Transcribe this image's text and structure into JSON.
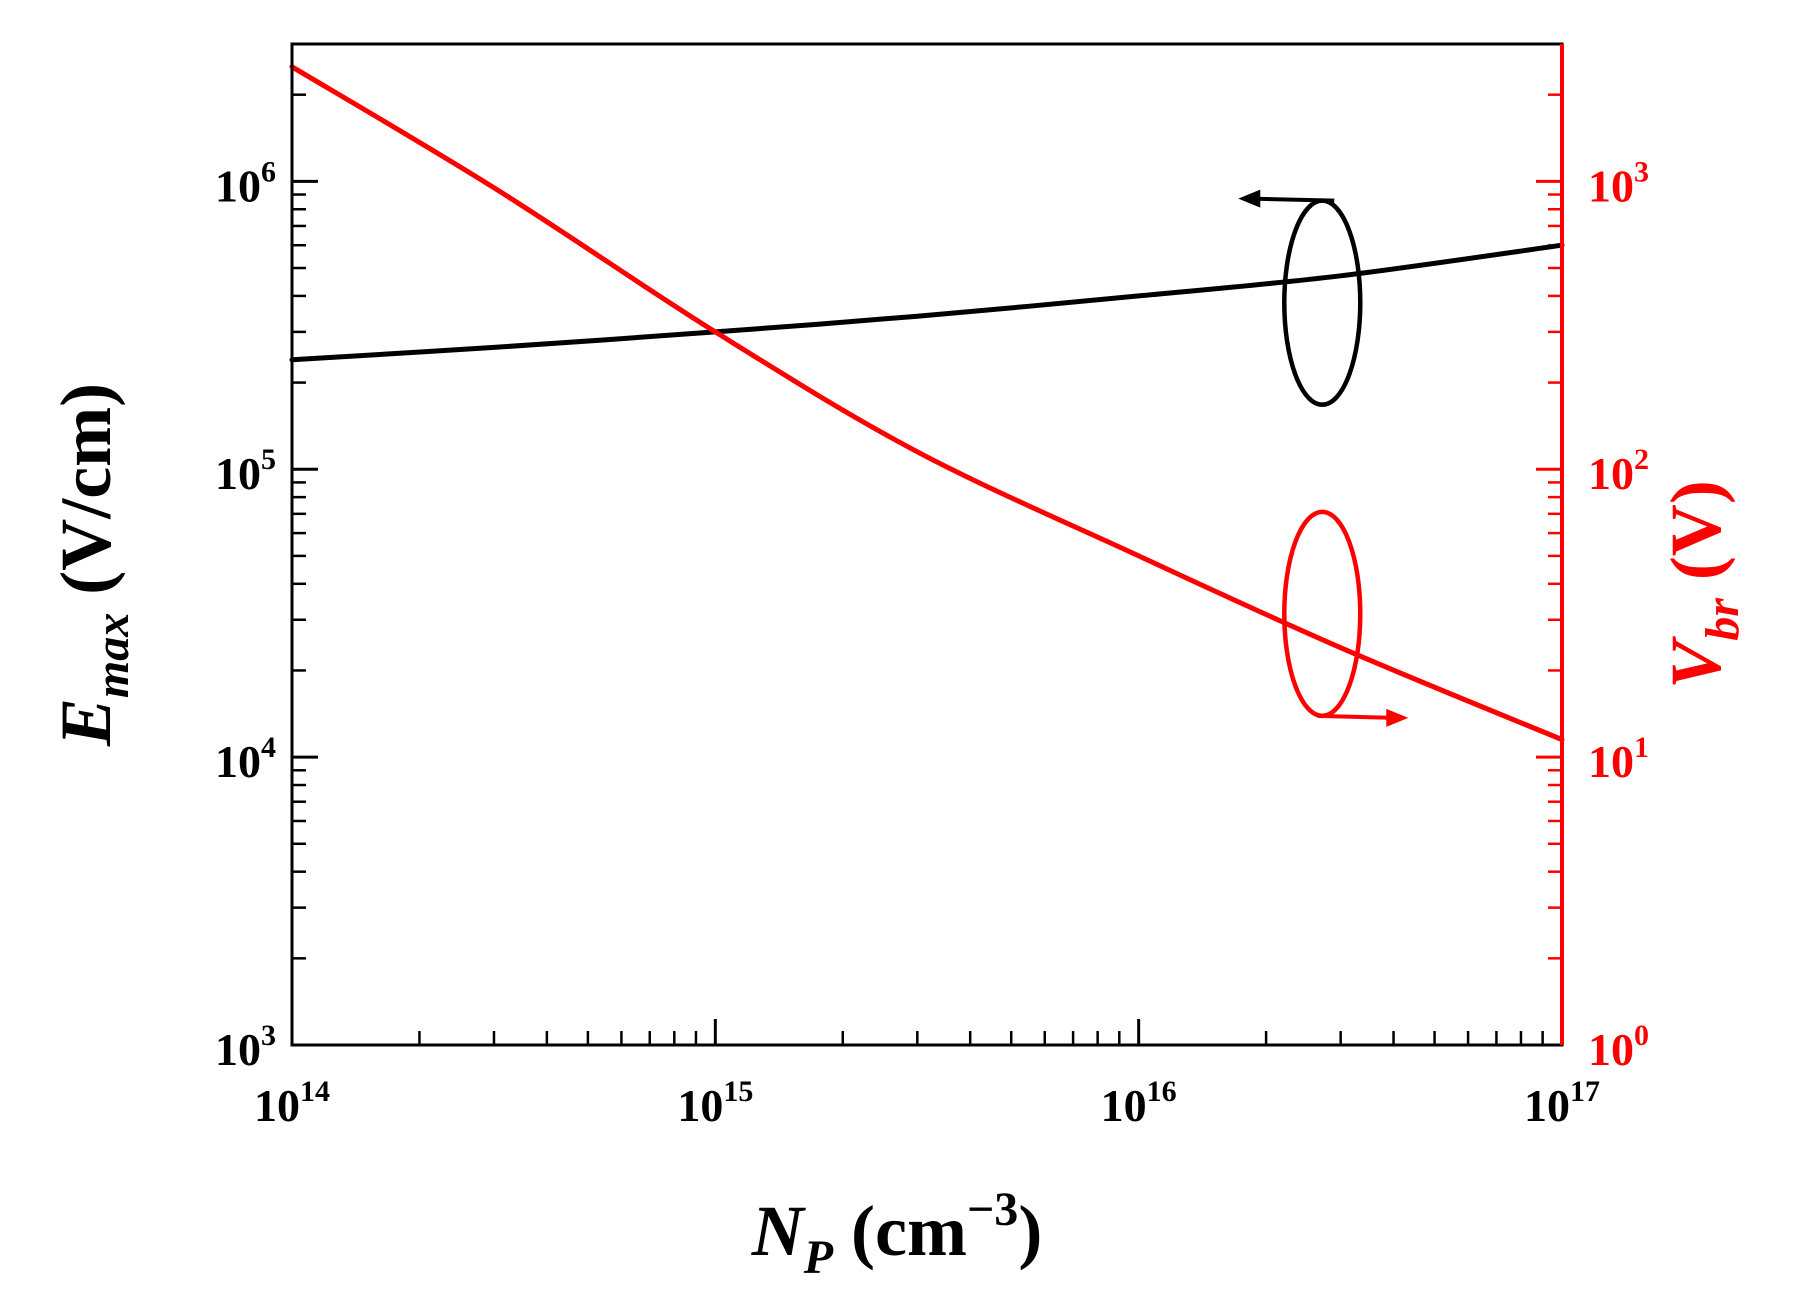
{
  "chart_data": {
    "type": "line",
    "title": "",
    "xlabel": {
      "main": "N",
      "sub": "P",
      "rest": " (cm",
      "sup": "−3",
      "close": ")"
    },
    "ylabel_left": {
      "main": "E",
      "sub": "max",
      "rest": " (V/cm)"
    },
    "ylabel_right": {
      "main": "V",
      "sub": "br",
      "rest": " (V)"
    },
    "x_scale": "log",
    "y_left_scale": "log",
    "y_right_scale": "log",
    "xlim": [
      100000000000000.0,
      1e+17
    ],
    "ylim_left": [
      1000.0,
      3000000.0
    ],
    "ylim_right": [
      1,
      3000
    ],
    "x_ticks": [
      {
        "base": "10",
        "exp": "14"
      },
      {
        "base": "10",
        "exp": "15"
      },
      {
        "base": "10",
        "exp": "16"
      },
      {
        "base": "10",
        "exp": "17"
      }
    ],
    "y_left_ticks": [
      {
        "base": "10",
        "exp": "3"
      },
      {
        "base": "10",
        "exp": "4"
      },
      {
        "base": "10",
        "exp": "5"
      },
      {
        "base": "10",
        "exp": "6"
      }
    ],
    "y_right_ticks": [
      {
        "base": "10",
        "exp": "0"
      },
      {
        "base": "10",
        "exp": "1"
      },
      {
        "base": "10",
        "exp": "2"
      },
      {
        "base": "10",
        "exp": "3"
      }
    ],
    "grid": false,
    "legend": "none",
    "series": [
      {
        "axis": "left",
        "color": "#000000",
        "x": [
          100000000000000.0,
          300000000000000.0,
          1000000000000000.0,
          3000000000000000.0,
          1e+16,
          3e+16,
          1e+17
        ],
        "y": [
          240000,
          265000,
          300000,
          340000,
          400000,
          470000,
          600000
        ]
      },
      {
        "axis": "right",
        "color": "#ff0000",
        "x": [
          100000000000000.0,
          300000000000000.0,
          1000000000000000.0,
          3000000000000000.0,
          1e+16,
          3e+16,
          1e+17
        ],
        "y": [
          2500,
          950,
          300,
          115,
          50,
          24,
          11.5
        ]
      }
    ],
    "annotations": [
      {
        "type": "axis-indicator",
        "series_axis": "left",
        "direction": "left",
        "color": "#000000"
      },
      {
        "type": "axis-indicator",
        "series_axis": "right",
        "direction": "right",
        "color": "#ff0000"
      }
    ],
    "colors": {
      "left_axis": "#000000",
      "right_axis": "#ff0000"
    }
  }
}
